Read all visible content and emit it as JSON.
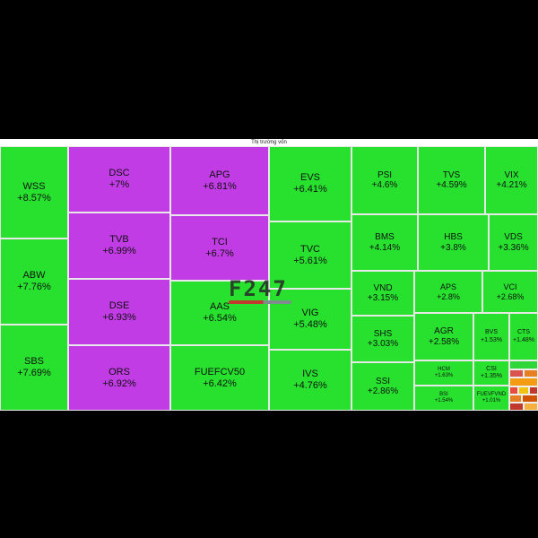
{
  "header": {
    "title": "Thị trường vốn"
  },
  "watermark": {
    "text": "F247"
  },
  "colors": {
    "ceiling": "#c13ce4",
    "gain": "#27e12e",
    "gain_light": "#3ee845",
    "background": "#000000"
  },
  "chart_data": {
    "type": "treemap",
    "title": "Thị trường vốn",
    "items": [
      {
        "symbol": "WSS",
        "change": "+8.57%",
        "value": 8.57,
        "status": "gain"
      },
      {
        "symbol": "ABW",
        "change": "+7.76%",
        "value": 7.76,
        "status": "gain"
      },
      {
        "symbol": "SBS",
        "change": "+7.69%",
        "value": 7.69,
        "status": "gain"
      },
      {
        "symbol": "DSC",
        "change": "+7%",
        "value": 7.0,
        "status": "ceiling"
      },
      {
        "symbol": "TVB",
        "change": "+6.99%",
        "value": 6.99,
        "status": "ceiling"
      },
      {
        "symbol": "DSE",
        "change": "+6.93%",
        "value": 6.93,
        "status": "ceiling"
      },
      {
        "symbol": "ORS",
        "change": "+6.92%",
        "value": 6.92,
        "status": "ceiling"
      },
      {
        "symbol": "APG",
        "change": "+6.81%",
        "value": 6.81,
        "status": "ceiling"
      },
      {
        "symbol": "TCI",
        "change": "+6.7%",
        "value": 6.7,
        "status": "ceiling"
      },
      {
        "symbol": "AAS",
        "change": "+6.54%",
        "value": 6.54,
        "status": "gain"
      },
      {
        "symbol": "FUEFCV50",
        "change": "+6.42%",
        "value": 6.42,
        "status": "gain"
      },
      {
        "symbol": "EVS",
        "change": "+6.41%",
        "value": 6.41,
        "status": "gain"
      },
      {
        "symbol": "TVC",
        "change": "+5.61%",
        "value": 5.61,
        "status": "gain"
      },
      {
        "symbol": "VIG",
        "change": "+5.48%",
        "value": 5.48,
        "status": "gain"
      },
      {
        "symbol": "IVS",
        "change": "+4.76%",
        "value": 4.76,
        "status": "gain"
      },
      {
        "symbol": "PSI",
        "change": "+4.6%",
        "value": 4.6,
        "status": "gain"
      },
      {
        "symbol": "TVS",
        "change": "+4.59%",
        "value": 4.59,
        "status": "gain"
      },
      {
        "symbol": "VIX",
        "change": "+4.21%",
        "value": 4.21,
        "status": "gain"
      },
      {
        "symbol": "BMS",
        "change": "+4.14%",
        "value": 4.14,
        "status": "gain"
      },
      {
        "symbol": "HBS",
        "change": "+3.8%",
        "value": 3.8,
        "status": "gain"
      },
      {
        "symbol": "VDS",
        "change": "+3.36%",
        "value": 3.36,
        "status": "gain"
      },
      {
        "symbol": "VND",
        "change": "+3.15%",
        "value": 3.15,
        "status": "gain"
      },
      {
        "symbol": "APS",
        "change": "+2.8%",
        "value": 2.8,
        "status": "gain"
      },
      {
        "symbol": "VCI",
        "change": "+2.68%",
        "value": 2.68,
        "status": "gain"
      },
      {
        "symbol": "SHS",
        "change": "+3.03%",
        "value": 3.03,
        "status": "gain"
      },
      {
        "symbol": "SSI",
        "change": "+2.86%",
        "value": 2.86,
        "status": "gain"
      },
      {
        "symbol": "AGR",
        "change": "+2.58%",
        "value": 2.58,
        "status": "gain"
      },
      {
        "symbol": "BVS",
        "change": "+1.53%",
        "value": 1.53,
        "status": "gain"
      },
      {
        "symbol": "CTS",
        "change": "+1.48%",
        "value": 1.48,
        "status": "gain"
      },
      {
        "symbol": "HCM",
        "change": "+1.63%",
        "value": 1.63,
        "status": "gain"
      },
      {
        "symbol": "CSI",
        "change": "+1.35%",
        "value": 1.35,
        "status": "gain"
      },
      {
        "symbol": "BSI",
        "change": "+1.54%",
        "value": 1.54,
        "status": "gain"
      },
      {
        "symbol": "FUEVFVND",
        "change": "+1.01%",
        "value": 1.01,
        "status": "gain"
      }
    ]
  }
}
